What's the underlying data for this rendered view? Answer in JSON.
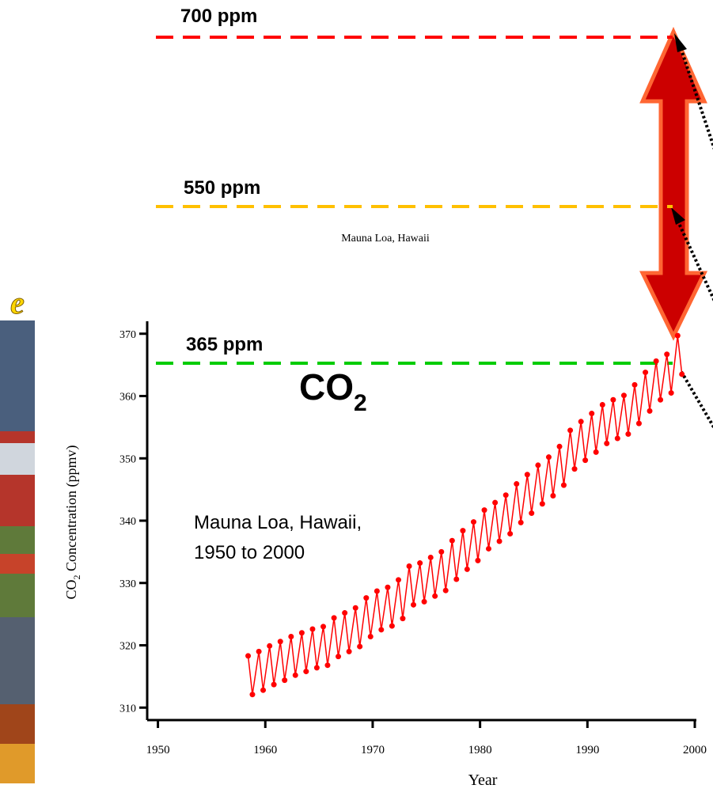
{
  "chart_data": {
    "type": "line",
    "subtitle": "Mauna Loa, Hawaii",
    "ylabel_parts": [
      "CO",
      "2",
      " Concentration (ppmv)"
    ],
    "xlabel": "Year",
    "big_label_parts": [
      "CO",
      "2"
    ],
    "annotation_lines": [
      "Mauna Loa, Hawaii,",
      "1950 to 2000"
    ],
    "logo": "e",
    "reference_lines": [
      {
        "label": "700 ppm",
        "color": "#ff0000"
      },
      {
        "label": "550 ppm",
        "color": "#ffc000"
      },
      {
        "label": "365 ppm",
        "color": "#00cc00"
      }
    ],
    "xlim": [
      1949,
      2000
    ],
    "xticks": [
      1950,
      1960,
      1970,
      1980,
      1990,
      2000
    ],
    "ylim": [
      308,
      372
    ],
    "yticks": [
      310,
      320,
      330,
      340,
      350,
      360,
      370
    ],
    "series": [
      {
        "color": "#ff0000",
        "x": [
          1958.4,
          1958.8,
          1959.4,
          1959.8,
          1960.4,
          1960.8,
          1961.4,
          1961.8,
          1962.4,
          1962.8,
          1963.4,
          1963.8,
          1964.4,
          1964.8,
          1965.4,
          1965.8,
          1966.4,
          1966.8,
          1967.4,
          1967.8,
          1968.4,
          1968.8,
          1969.4,
          1969.8,
          1970.4,
          1970.8,
          1971.4,
          1971.8,
          1972.4,
          1972.8,
          1973.4,
          1973.8,
          1974.4,
          1974.8,
          1975.4,
          1975.8,
          1976.4,
          1976.8,
          1977.4,
          1977.8,
          1978.4,
          1978.8,
          1979.4,
          1979.8,
          1980.4,
          1980.8,
          1981.4,
          1981.8,
          1982.4,
          1982.8,
          1983.4,
          1983.8,
          1984.4,
          1984.8,
          1985.4,
          1985.8,
          1986.4,
          1986.8,
          1987.4,
          1987.8,
          1988.4,
          1988.8,
          1989.4,
          1989.8,
          1990.4,
          1990.8,
          1991.4,
          1991.8,
          1992.4,
          1992.8,
          1993.4,
          1993.8,
          1994.4,
          1994.8,
          1995.4,
          1995.8,
          1996.4,
          1996.8,
          1997.4,
          1997.8,
          1998.4,
          1998.8
        ],
        "values": [
          318.3,
          312.1,
          319.0,
          312.8,
          319.9,
          313.7,
          320.6,
          314.4,
          321.4,
          315.2,
          322.0,
          315.8,
          322.6,
          316.4,
          323.0,
          316.8,
          324.4,
          318.2,
          325.2,
          319.0,
          326.0,
          319.8,
          327.6,
          321.4,
          328.7,
          322.5,
          329.3,
          323.1,
          330.5,
          324.3,
          332.7,
          326.5,
          333.2,
          327.0,
          334.1,
          327.9,
          335.0,
          328.8,
          336.8,
          330.6,
          338.4,
          332.2,
          339.8,
          333.6,
          341.7,
          335.5,
          342.9,
          336.7,
          344.1,
          337.9,
          345.9,
          339.7,
          347.4,
          341.2,
          348.9,
          342.7,
          350.2,
          344.0,
          351.9,
          345.7,
          354.5,
          348.3,
          355.9,
          349.7,
          357.2,
          351.0,
          358.6,
          352.4,
          359.4,
          353.2,
          360.1,
          353.9,
          361.8,
          355.6,
          363.8,
          357.6,
          365.6,
          359.4,
          366.7,
          360.5,
          369.7,
          363.5
        ]
      }
    ]
  }
}
